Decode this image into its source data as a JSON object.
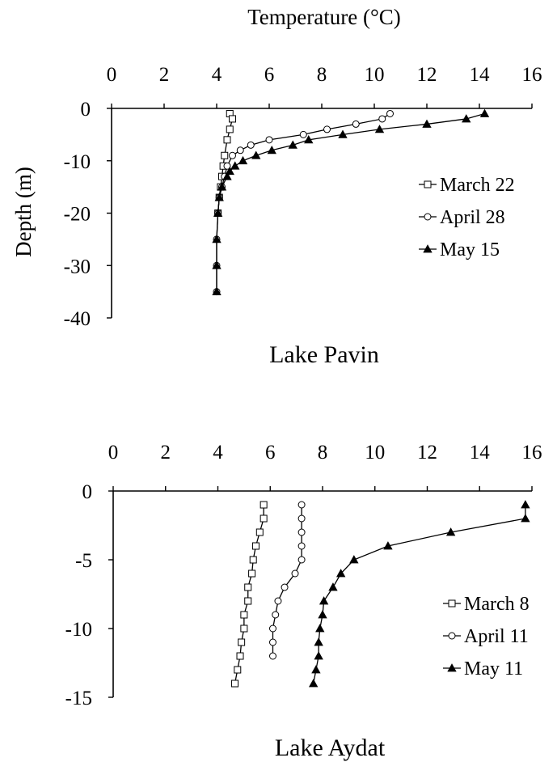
{
  "chart_data": [
    {
      "type": "line",
      "title": "Lake Pavin",
      "xlabel": "Temperature (°C)",
      "ylabel": "Depth (m)",
      "xlim": [
        0,
        16
      ],
      "ylim": [
        -40,
        0
      ],
      "xticks": [
        0,
        2,
        4,
        6,
        8,
        10,
        12,
        14,
        16
      ],
      "yticks": [
        0,
        -10,
        -20,
        -30,
        -40
      ],
      "legend_position": "right",
      "series": [
        {
          "name": "March 22",
          "marker": "square-open",
          "points": [
            [
              4.5,
              -1
            ],
            [
              4.6,
              -2
            ],
            [
              4.5,
              -4
            ],
            [
              4.4,
              -6
            ],
            [
              4.3,
              -9
            ],
            [
              4.25,
              -11
            ],
            [
              4.2,
              -13
            ],
            [
              4.15,
              -15
            ],
            [
              4.1,
              -17
            ],
            [
              4.05,
              -20
            ]
          ]
        },
        {
          "name": "April 28",
          "marker": "circle-open",
          "points": [
            [
              10.6,
              -1
            ],
            [
              10.3,
              -2
            ],
            [
              9.3,
              -3
            ],
            [
              8.2,
              -4
            ],
            [
              7.3,
              -5
            ],
            [
              6.0,
              -6
            ],
            [
              5.3,
              -7
            ],
            [
              4.9,
              -8
            ],
            [
              4.6,
              -9
            ],
            [
              4.4,
              -11
            ],
            [
              4.3,
              -13
            ],
            [
              4.2,
              -15
            ],
            [
              4.1,
              -17
            ],
            [
              4.05,
              -20
            ],
            [
              4.0,
              -25
            ],
            [
              4.0,
              -30
            ],
            [
              4.0,
              -35
            ]
          ]
        },
        {
          "name": "May 15",
          "marker": "triangle-filled",
          "points": [
            [
              14.2,
              -1
            ],
            [
              13.5,
              -2
            ],
            [
              12.0,
              -3
            ],
            [
              10.2,
              -4
            ],
            [
              8.8,
              -5
            ],
            [
              7.5,
              -6
            ],
            [
              6.9,
              -7
            ],
            [
              6.1,
              -8
            ],
            [
              5.5,
              -9
            ],
            [
              5.0,
              -10
            ],
            [
              4.7,
              -11
            ],
            [
              4.5,
              -12
            ],
            [
              4.4,
              -13
            ],
            [
              4.2,
              -15
            ],
            [
              4.1,
              -17
            ],
            [
              4.05,
              -20
            ],
            [
              4.0,
              -25
            ],
            [
              4.0,
              -30
            ],
            [
              4.0,
              -35
            ]
          ]
        }
      ]
    },
    {
      "type": "line",
      "title": "Lake Aydat",
      "xlabel": "",
      "ylabel": "",
      "xlim": [
        0,
        16
      ],
      "ylim": [
        -15,
        0
      ],
      "xticks": [
        0,
        2,
        4,
        6,
        8,
        10,
        12,
        14,
        16
      ],
      "yticks": [
        0,
        -5,
        -10,
        -15
      ],
      "legend_position": "right",
      "series": [
        {
          "name": "March 8",
          "marker": "square-open",
          "points": [
            [
              5.75,
              -1
            ],
            [
              5.75,
              -2
            ],
            [
              5.6,
              -3
            ],
            [
              5.45,
              -4
            ],
            [
              5.35,
              -5
            ],
            [
              5.3,
              -6
            ],
            [
              5.15,
              -7
            ],
            [
              5.15,
              -8
            ],
            [
              5.0,
              -9
            ],
            [
              5.0,
              -10
            ],
            [
              4.9,
              -11
            ],
            [
              4.85,
              -12
            ],
            [
              4.75,
              -13
            ],
            [
              4.65,
              -14
            ]
          ]
        },
        {
          "name": "April 11",
          "marker": "circle-open",
          "points": [
            [
              7.2,
              -1
            ],
            [
              7.2,
              -2
            ],
            [
              7.2,
              -3
            ],
            [
              7.2,
              -4
            ],
            [
              7.2,
              -5
            ],
            [
              6.95,
              -6
            ],
            [
              6.55,
              -7
            ],
            [
              6.3,
              -8
            ],
            [
              6.2,
              -9
            ],
            [
              6.1,
              -10
            ],
            [
              6.1,
              -11
            ],
            [
              6.1,
              -12
            ]
          ]
        },
        {
          "name": "May 11",
          "marker": "triangle-filled",
          "points": [
            [
              15.75,
              -1
            ],
            [
              15.75,
              -2
            ],
            [
              12.9,
              -3
            ],
            [
              10.5,
              -4
            ],
            [
              9.2,
              -5
            ],
            [
              8.7,
              -6
            ],
            [
              8.4,
              -7
            ],
            [
              8.05,
              -8
            ],
            [
              8.0,
              -9
            ],
            [
              7.9,
              -10
            ],
            [
              7.85,
              -11
            ],
            [
              7.85,
              -12
            ],
            [
              7.75,
              -13
            ],
            [
              7.65,
              -14
            ]
          ]
        }
      ]
    }
  ]
}
